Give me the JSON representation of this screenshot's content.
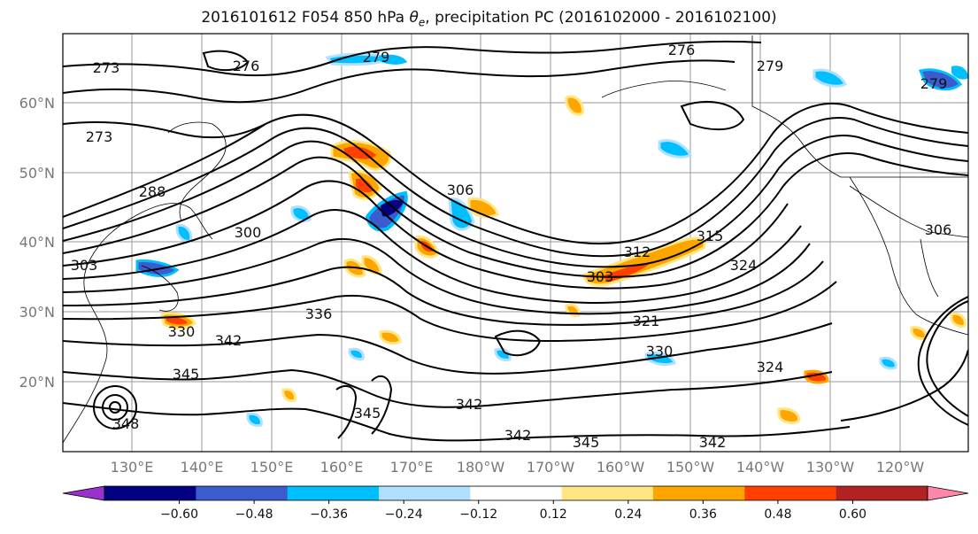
{
  "title": {
    "prefix": "2016101612 F054 850 hPa ",
    "theta": "θ",
    "theta_sub": "e",
    "suffix": ", precipitation PC (2016102000 - 2016102100)"
  },
  "map": {
    "lat_labels": [
      "60°N",
      "50°N",
      "40°N",
      "30°N",
      "20°N"
    ],
    "lon_labels": [
      "130°E",
      "140°E",
      "150°E",
      "160°E",
      "170°E",
      "180°W",
      "170°W",
      "160°W",
      "150°W",
      "140°W",
      "130°W",
      "120°W"
    ],
    "contour_labels": [
      "273",
      "276",
      "279",
      "276",
      "279",
      "273",
      "288",
      "300",
      "303",
      "306",
      "312",
      "315",
      "324",
      "321",
      "330",
      "336",
      "342",
      "345",
      "348",
      "342",
      "345",
      "342",
      "345",
      "342",
      "330",
      "324",
      "303",
      "306",
      "279"
    ],
    "grid_color": "#999999",
    "contour_color": "#000000"
  },
  "colorbar": {
    "tick_labels": [
      "−0.60",
      "−0.48",
      "−0.36",
      "−0.24",
      "−0.12",
      "0.12",
      "0.24",
      "0.36",
      "0.48",
      "0.60"
    ],
    "tick_values": [
      -0.6,
      -0.48,
      -0.36,
      -0.24,
      -0.12,
      0.12,
      0.24,
      0.36,
      0.48,
      0.6
    ],
    "colors": [
      "#9932cc",
      "#000080",
      "#3a5ccc",
      "#00bfff",
      "#b0e0ff",
      "#ffffff",
      "#ffe680",
      "#ffa500",
      "#ff4000",
      "#b22222",
      "#ff88aa"
    ]
  }
}
